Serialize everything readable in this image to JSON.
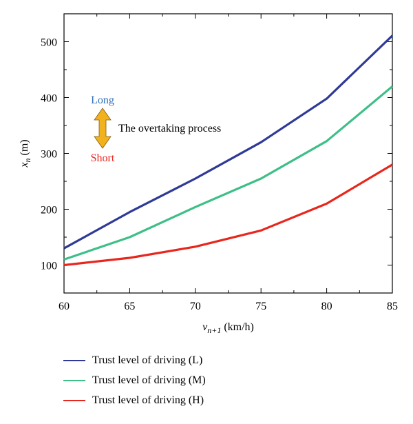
{
  "chart_data": {
    "type": "line",
    "x": [
      60,
      65,
      70,
      75,
      80,
      85
    ],
    "xlim": [
      60,
      85
    ],
    "ylim": [
      50,
      550
    ],
    "x_ticks": [
      "60",
      "65",
      "70",
      "75",
      "80",
      "85"
    ],
    "y_ticks": [
      "100",
      "200",
      "300",
      "400",
      "500"
    ],
    "y_tick_values": [
      100,
      200,
      300,
      400,
      500
    ],
    "xlabel": {
      "main": "v",
      "sub": "n+1",
      "unit": " (km/h)"
    },
    "ylabel": {
      "main": "x",
      "sub": "n",
      "unit": " (m)"
    },
    "grid": false,
    "legend_placement": "bottom",
    "series": [
      {
        "name": "Trust level of driving (L)",
        "color": "#2e3a96",
        "values": [
          130,
          195,
          255,
          320,
          398,
          511
        ]
      },
      {
        "name": "Trust level of driving (M)",
        "color": "#3dbf87",
        "values": [
          110,
          150,
          204,
          255,
          322,
          420
        ]
      },
      {
        "name": "Trust level of driving (H)",
        "color": "#e8261d",
        "values": [
          100,
          113,
          133,
          162,
          210,
          280
        ]
      }
    ],
    "annotations": {
      "long": {
        "text": "Long",
        "color": "#2f6fba"
      },
      "short": {
        "text": "Short",
        "color": "#e8261d"
      },
      "process": {
        "text": "The overtaking process",
        "color": "#000000"
      },
      "arrow_color": "#f2b21e"
    }
  }
}
